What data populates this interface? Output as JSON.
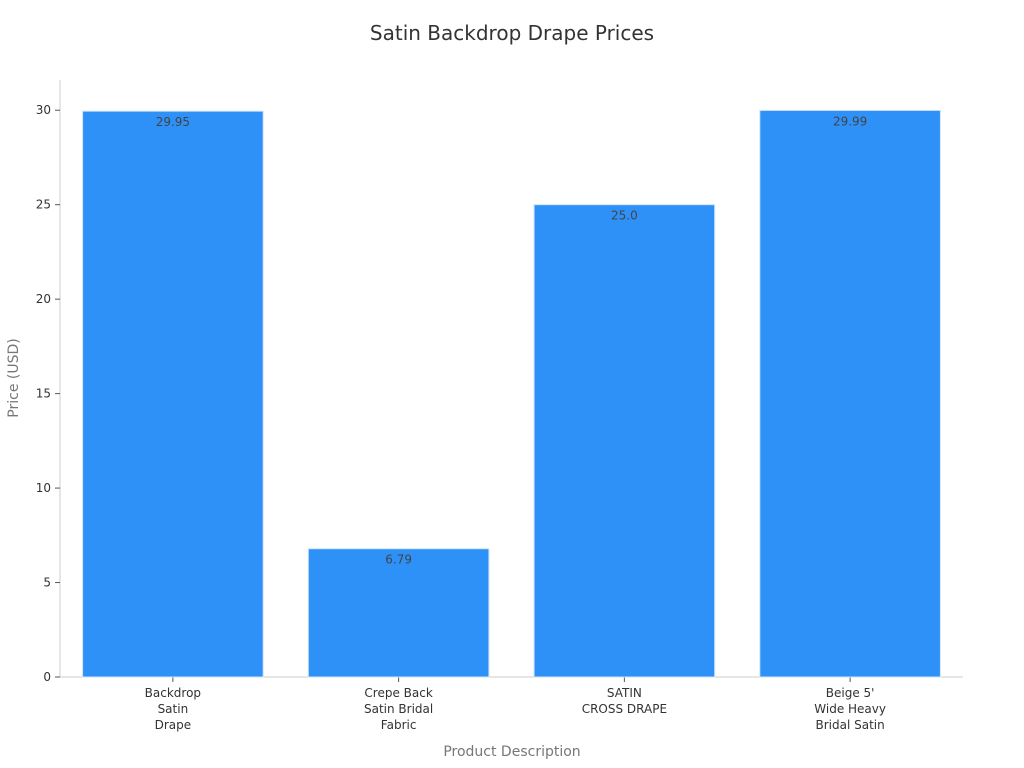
{
  "chart_data": {
    "type": "bar",
    "title": "Satin Backdrop Drape Prices",
    "xlabel": "Product Description",
    "ylabel": "Price (USD)",
    "categories": [
      [
        "Backdrop",
        "Satin",
        "Drape"
      ],
      [
        "Crepe Back",
        "Satin Bridal",
        "Fabric"
      ],
      [
        "SATIN",
        "CROSS DRAPE"
      ],
      [
        "Beige 5'",
        "Wide Heavy",
        "Bridal Satin"
      ]
    ],
    "values": [
      29.95,
      6.79,
      25.0,
      29.99
    ],
    "value_labels": [
      "29.95",
      "6.79",
      "25.0",
      "29.99"
    ],
    "ylim": [
      0,
      31.6
    ],
    "yticks": [
      0,
      5,
      10,
      15,
      20,
      25,
      30
    ],
    "grid": false,
    "bar_color": "#2e91f8",
    "axis_color": "#cccccc",
    "text_color": "#333333",
    "label_color": "#777777"
  }
}
